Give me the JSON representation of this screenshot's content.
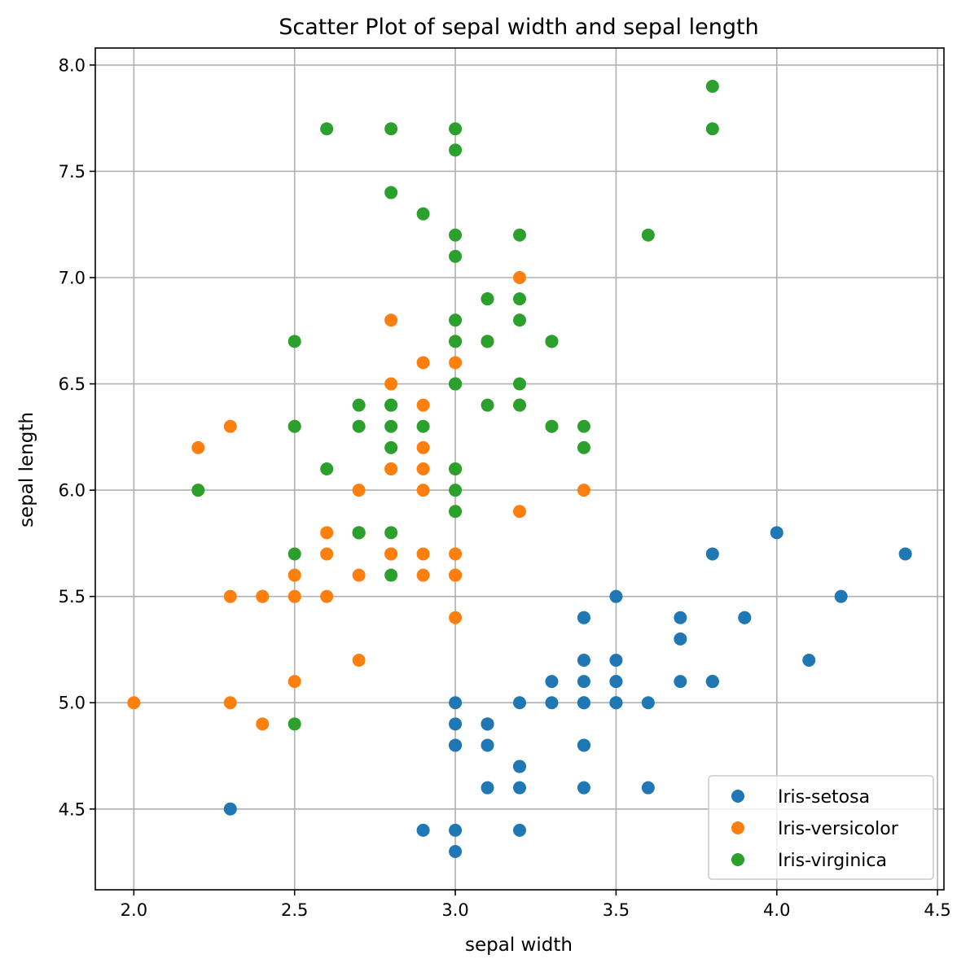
{
  "chart_data": {
    "type": "scatter",
    "title": "Scatter Plot of sepal width and sepal length",
    "xlabel": "sepal width",
    "ylabel": "sepal length",
    "xlim": [
      1.88,
      4.52
    ],
    "ylim": [
      4.12,
      8.08
    ],
    "xticks": [
      2.0,
      2.5,
      3.0,
      3.5,
      4.0,
      4.5
    ],
    "yticks": [
      4.5,
      5.0,
      5.5,
      6.0,
      6.5,
      7.0,
      7.5,
      8.0
    ],
    "grid": true,
    "legend_position": "lower-right",
    "series": [
      {
        "name": "Iris-setosa",
        "color": "#1f77b4",
        "points": [
          [
            3.5,
            5.1
          ],
          [
            3.0,
            4.9
          ],
          [
            3.2,
            4.7
          ],
          [
            3.1,
            4.6
          ],
          [
            3.6,
            5.0
          ],
          [
            3.9,
            5.4
          ],
          [
            3.4,
            4.6
          ],
          [
            3.4,
            5.0
          ],
          [
            2.9,
            4.4
          ],
          [
            3.1,
            4.9
          ],
          [
            3.7,
            5.4
          ],
          [
            3.4,
            4.8
          ],
          [
            3.0,
            4.8
          ],
          [
            3.0,
            4.3
          ],
          [
            4.0,
            5.8
          ],
          [
            4.4,
            5.7
          ],
          [
            3.9,
            5.4
          ],
          [
            3.5,
            5.1
          ],
          [
            3.8,
            5.7
          ],
          [
            3.8,
            5.1
          ],
          [
            3.4,
            5.4
          ],
          [
            3.7,
            5.1
          ],
          [
            3.6,
            4.6
          ],
          [
            3.3,
            5.1
          ],
          [
            3.4,
            4.8
          ],
          [
            3.0,
            5.0
          ],
          [
            3.4,
            5.0
          ],
          [
            3.5,
            5.2
          ],
          [
            3.4,
            5.2
          ],
          [
            3.2,
            4.7
          ],
          [
            3.1,
            4.8
          ],
          [
            3.4,
            5.4
          ],
          [
            4.1,
            5.2
          ],
          [
            4.2,
            5.5
          ],
          [
            3.1,
            4.9
          ],
          [
            3.2,
            5.0
          ],
          [
            3.5,
            5.5
          ],
          [
            3.1,
            4.9
          ],
          [
            3.0,
            4.4
          ],
          [
            3.4,
            5.1
          ],
          [
            3.5,
            5.0
          ],
          [
            2.3,
            4.5
          ],
          [
            3.2,
            4.4
          ],
          [
            3.5,
            5.0
          ],
          [
            3.8,
            5.1
          ],
          [
            3.0,
            4.8
          ],
          [
            3.8,
            5.1
          ],
          [
            3.2,
            4.6
          ],
          [
            3.7,
            5.3
          ],
          [
            3.3,
            5.0
          ]
        ]
      },
      {
        "name": "Iris-versicolor",
        "color": "#ff7f0e",
        "points": [
          [
            3.2,
            7.0
          ],
          [
            3.2,
            6.4
          ],
          [
            3.1,
            6.9
          ],
          [
            2.3,
            5.5
          ],
          [
            2.8,
            6.5
          ],
          [
            2.8,
            5.7
          ],
          [
            3.3,
            6.3
          ],
          [
            2.4,
            4.9
          ],
          [
            2.9,
            6.6
          ],
          [
            2.7,
            5.2
          ],
          [
            2.0,
            5.0
          ],
          [
            3.0,
            5.9
          ],
          [
            2.2,
            6.0
          ],
          [
            2.9,
            6.1
          ],
          [
            2.9,
            5.6
          ],
          [
            3.1,
            6.7
          ],
          [
            3.0,
            5.6
          ],
          [
            2.7,
            5.8
          ],
          [
            2.2,
            6.2
          ],
          [
            2.5,
            5.6
          ],
          [
            3.2,
            5.9
          ],
          [
            2.8,
            6.1
          ],
          [
            2.5,
            6.3
          ],
          [
            2.8,
            6.1
          ],
          [
            2.9,
            6.4
          ],
          [
            3.0,
            6.6
          ],
          [
            2.8,
            6.8
          ],
          [
            3.0,
            6.7
          ],
          [
            2.9,
            6.0
          ],
          [
            2.6,
            5.7
          ],
          [
            2.4,
            5.5
          ],
          [
            2.4,
            5.5
          ],
          [
            2.7,
            5.8
          ],
          [
            2.7,
            6.0
          ],
          [
            3.0,
            5.4
          ],
          [
            3.4,
            6.0
          ],
          [
            3.1,
            6.7
          ],
          [
            2.3,
            6.3
          ],
          [
            3.0,
            5.6
          ],
          [
            2.5,
            5.5
          ],
          [
            2.6,
            5.5
          ],
          [
            3.0,
            6.1
          ],
          [
            2.6,
            5.8
          ],
          [
            2.3,
            5.0
          ],
          [
            2.7,
            5.6
          ],
          [
            3.0,
            5.7
          ],
          [
            2.9,
            5.7
          ],
          [
            2.9,
            6.2
          ],
          [
            2.5,
            5.1
          ],
          [
            2.8,
            5.7
          ]
        ]
      },
      {
        "name": "Iris-virginica",
        "color": "#2ca02c",
        "points": [
          [
            3.3,
            6.3
          ],
          [
            2.7,
            5.8
          ],
          [
            3.0,
            7.1
          ],
          [
            2.9,
            6.3
          ],
          [
            3.0,
            6.5
          ],
          [
            3.0,
            7.6
          ],
          [
            2.5,
            4.9
          ],
          [
            2.9,
            7.3
          ],
          [
            2.5,
            6.7
          ],
          [
            3.6,
            7.2
          ],
          [
            3.2,
            6.5
          ],
          [
            2.7,
            6.4
          ],
          [
            3.0,
            6.8
          ],
          [
            2.5,
            5.7
          ],
          [
            2.8,
            5.8
          ],
          [
            3.2,
            6.4
          ],
          [
            3.0,
            6.5
          ],
          [
            3.8,
            7.7
          ],
          [
            2.6,
            7.7
          ],
          [
            2.2,
            6.0
          ],
          [
            3.2,
            6.9
          ],
          [
            2.8,
            5.6
          ],
          [
            2.8,
            7.7
          ],
          [
            2.7,
            6.3
          ],
          [
            3.3,
            6.7
          ],
          [
            3.2,
            7.2
          ],
          [
            2.8,
            6.2
          ],
          [
            3.0,
            6.1
          ],
          [
            2.8,
            6.4
          ],
          [
            3.0,
            7.2
          ],
          [
            2.8,
            7.4
          ],
          [
            3.8,
            7.9
          ],
          [
            2.8,
            6.4
          ],
          [
            2.8,
            6.3
          ],
          [
            2.6,
            6.1
          ],
          [
            3.0,
            7.7
          ],
          [
            3.4,
            6.3
          ],
          [
            3.1,
            6.4
          ],
          [
            3.0,
            6.0
          ],
          [
            3.1,
            6.9
          ],
          [
            3.1,
            6.7
          ],
          [
            3.1,
            6.9
          ],
          [
            2.7,
            5.8
          ],
          [
            3.2,
            6.8
          ],
          [
            3.3,
            6.7
          ],
          [
            3.0,
            6.7
          ],
          [
            2.5,
            6.3
          ],
          [
            3.0,
            6.5
          ],
          [
            3.4,
            6.2
          ],
          [
            3.0,
            5.9
          ]
        ]
      }
    ]
  }
}
